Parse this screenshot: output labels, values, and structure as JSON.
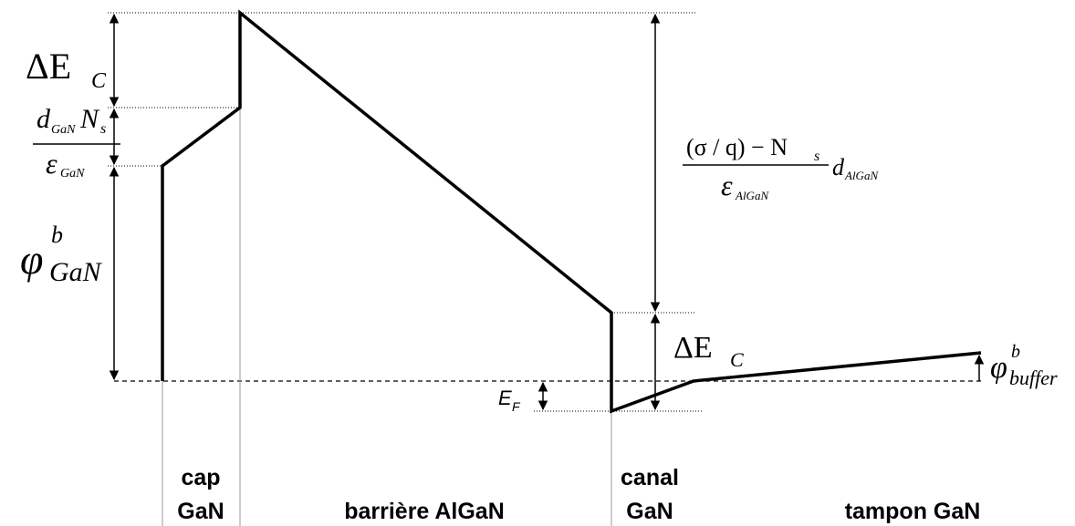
{
  "labels": {
    "delta_ec_left": {
      "main": "ΔE",
      "sub": "C"
    },
    "cap_field": {
      "num_main1": "d",
      "num_sub1": "GaN",
      "num_main2": "N",
      "num_sub2": "s",
      "den_main": "ε",
      "den_sub": "GaN"
    },
    "phi_gan": {
      "main": "φ",
      "sup": "b",
      "sub": "GaN"
    },
    "barrier_field": {
      "num_main": "(σ / q) − N",
      "num_sub": "s",
      "den_main": "ε",
      "den_sub": "AlGaN",
      "post_main": "d",
      "post_sub": "AlGaN"
    },
    "delta_ec_right": {
      "main": "ΔE",
      "sub": "C"
    },
    "fermi": {
      "main": "E",
      "sub": "F"
    },
    "phi_buffer": {
      "main": "φ",
      "sup": "b",
      "sub": "buffer"
    }
  },
  "regions": [
    {
      "lines": [
        "cap",
        "GaN"
      ]
    },
    {
      "lines": [
        "barrière AlGaN"
      ]
    },
    {
      "lines": [
        "canal",
        "GaN"
      ]
    },
    {
      "lines": [
        "tampon GaN"
      ]
    }
  ]
}
